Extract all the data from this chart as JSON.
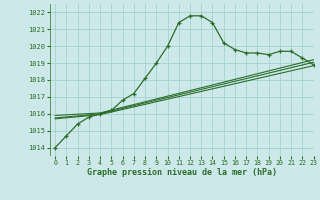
{
  "title": "Graphe pression niveau de la mer (hPa)",
  "bg_color": "#cce8e8",
  "grid_color": "#aad4d4",
  "line_color": "#2d6e2d",
  "xlim": [
    -0.5,
    23
  ],
  "ylim": [
    1013.5,
    1022.5
  ],
  "yticks": [
    1014,
    1015,
    1016,
    1017,
    1018,
    1019,
    1020,
    1021,
    1022
  ],
  "xticks": [
    0,
    1,
    2,
    3,
    4,
    5,
    6,
    7,
    8,
    9,
    10,
    11,
    12,
    13,
    14,
    15,
    16,
    17,
    18,
    19,
    20,
    21,
    22,
    23
  ],
  "main_x": [
    0,
    1,
    2,
    3,
    4,
    5,
    6,
    7,
    8,
    9,
    10,
    11,
    12,
    13,
    14,
    15,
    16,
    17,
    18,
    19,
    20,
    21,
    22,
    23
  ],
  "main_y": [
    1014.0,
    1014.7,
    1015.4,
    1015.8,
    1016.0,
    1016.2,
    1016.8,
    1017.2,
    1018.1,
    1019.0,
    1020.0,
    1021.4,
    1021.8,
    1021.8,
    1021.4,
    1020.2,
    1019.8,
    1019.6,
    1019.6,
    1019.5,
    1019.7,
    1019.7,
    1019.3,
    1018.9
  ],
  "line2_x": [
    0,
    4,
    23
  ],
  "line2_y": [
    1015.9,
    1016.05,
    1019.2
  ],
  "line3_x": [
    0,
    4,
    23
  ],
  "line3_y": [
    1015.7,
    1015.95,
    1018.85
  ],
  "line4_x": [
    0,
    4,
    23
  ],
  "line4_y": [
    1015.75,
    1016.0,
    1019.05
  ]
}
